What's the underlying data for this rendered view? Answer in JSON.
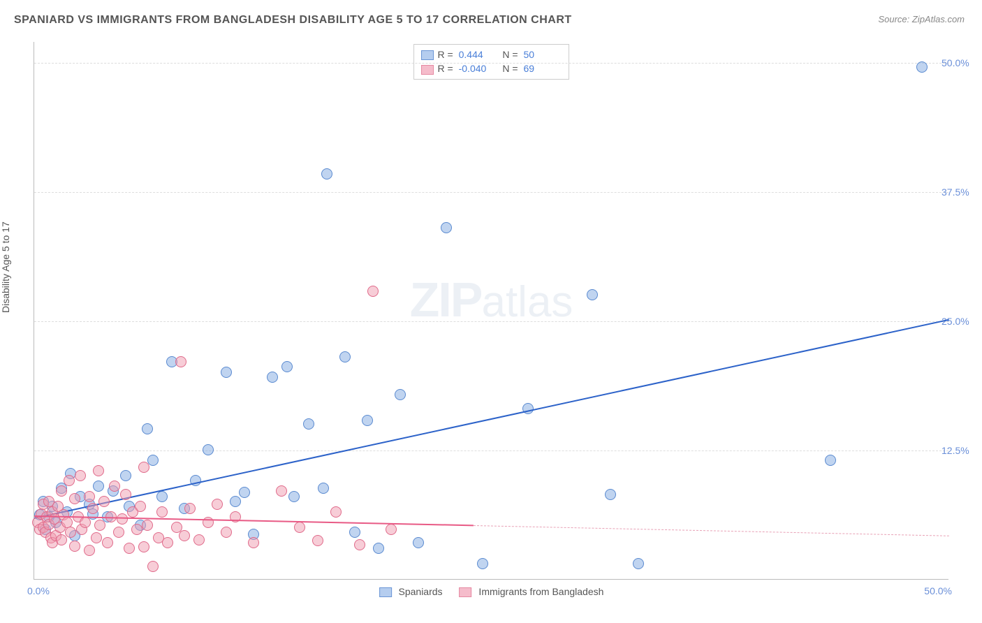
{
  "title": "SPANIARD VS IMMIGRANTS FROM BANGLADESH DISABILITY AGE 5 TO 17 CORRELATION CHART",
  "source": "Source: ZipAtlas.com",
  "ylabel": "Disability Age 5 to 17",
  "watermark_a": "ZIP",
  "watermark_b": "atlas",
  "chart": {
    "type": "scatter",
    "background_color": "#ffffff",
    "grid_color": "#dddddd",
    "xlim": [
      0,
      50
    ],
    "ylim": [
      0,
      52
    ],
    "y_ticks": [
      12.5,
      25.0,
      37.5,
      50.0
    ],
    "y_tick_labels": [
      "12.5%",
      "25.0%",
      "37.5%",
      "50.0%"
    ],
    "x_tick_left": "0.0%",
    "x_tick_right": "50.0%",
    "point_radius": 8,
    "point_border_width": 1,
    "series": [
      {
        "name": "Spaniards",
        "fill": "rgba(130,170,225,0.5)",
        "stroke": "#5a8ad0",
        "swatch_fill": "#b5cdef",
        "swatch_border": "#6a95d5",
        "R": "0.444",
        "N": "50",
        "trend": {
          "x1": 0,
          "y1": 6.0,
          "x2": 50,
          "y2": 25.2,
          "color": "#2c62c9",
          "width": 2
        },
        "points": [
          [
            0.3,
            6.2
          ],
          [
            0.5,
            7.5
          ],
          [
            0.6,
            4.8
          ],
          [
            0.8,
            6.0
          ],
          [
            1.0,
            7.0
          ],
          [
            1.2,
            5.5
          ],
          [
            1.5,
            8.8
          ],
          [
            1.8,
            6.5
          ],
          [
            2.0,
            10.2
          ],
          [
            2.2,
            4.2
          ],
          [
            2.5,
            8.0
          ],
          [
            3.0,
            7.2
          ],
          [
            3.2,
            6.3
          ],
          [
            3.5,
            9.0
          ],
          [
            4.0,
            6.0
          ],
          [
            4.3,
            8.5
          ],
          [
            5.0,
            10.0
          ],
          [
            5.2,
            7.0
          ],
          [
            5.8,
            5.2
          ],
          [
            6.2,
            14.5
          ],
          [
            6.5,
            11.5
          ],
          [
            7.0,
            8.0
          ],
          [
            7.5,
            21.0
          ],
          [
            8.2,
            6.8
          ],
          [
            8.8,
            9.5
          ],
          [
            9.5,
            12.5
          ],
          [
            10.5,
            20.0
          ],
          [
            11.0,
            7.5
          ],
          [
            11.5,
            8.4
          ],
          [
            12.0,
            4.3
          ],
          [
            13.0,
            19.5
          ],
          [
            13.8,
            20.5
          ],
          [
            14.2,
            8.0
          ],
          [
            15.0,
            15.0
          ],
          [
            15.8,
            8.8
          ],
          [
            16.0,
            39.2
          ],
          [
            17.0,
            21.5
          ],
          [
            17.5,
            4.5
          ],
          [
            18.2,
            15.3
          ],
          [
            18.8,
            3.0
          ],
          [
            20.0,
            17.8
          ],
          [
            21.0,
            3.5
          ],
          [
            22.5,
            34.0
          ],
          [
            24.5,
            1.5
          ],
          [
            27.0,
            16.5
          ],
          [
            30.5,
            27.5
          ],
          [
            31.5,
            8.2
          ],
          [
            33.0,
            1.5
          ],
          [
            43.5,
            11.5
          ],
          [
            48.5,
            49.5
          ]
        ]
      },
      {
        "name": "Immigrants from Bangladesh",
        "fill": "rgba(240,155,175,0.5)",
        "stroke": "#e06a8a",
        "swatch_fill": "#f5bccb",
        "swatch_border": "#e58aa2",
        "R": "-0.040",
        "N": "69",
        "trend_solid": {
          "x1": 0,
          "y1": 6.2,
          "x2": 24,
          "y2": 5.3,
          "color": "#e85a85",
          "width": 2
        },
        "trend_dashed": {
          "x1": 24,
          "y1": 5.3,
          "x2": 50,
          "y2": 4.3,
          "color": "#e8a0b5"
        },
        "points": [
          [
            0.2,
            5.5
          ],
          [
            0.3,
            4.8
          ],
          [
            0.4,
            6.3
          ],
          [
            0.5,
            5.0
          ],
          [
            0.5,
            7.2
          ],
          [
            0.6,
            4.5
          ],
          [
            0.7,
            6.0
          ],
          [
            0.8,
            5.3
          ],
          [
            0.8,
            7.5
          ],
          [
            0.9,
            4.0
          ],
          [
            1.0,
            6.5
          ],
          [
            1.0,
            3.5
          ],
          [
            1.1,
            5.8
          ],
          [
            1.2,
            4.2
          ],
          [
            1.3,
            7.0
          ],
          [
            1.4,
            5.0
          ],
          [
            1.5,
            8.5
          ],
          [
            1.5,
            3.8
          ],
          [
            1.6,
            6.2
          ],
          [
            1.8,
            5.5
          ],
          [
            1.9,
            9.5
          ],
          [
            2.0,
            4.5
          ],
          [
            2.2,
            7.8
          ],
          [
            2.2,
            3.2
          ],
          [
            2.4,
            6.0
          ],
          [
            2.5,
            10.0
          ],
          [
            2.6,
            4.8
          ],
          [
            2.8,
            5.5
          ],
          [
            3.0,
            8.0
          ],
          [
            3.0,
            2.8
          ],
          [
            3.2,
            6.8
          ],
          [
            3.4,
            4.0
          ],
          [
            3.5,
            10.5
          ],
          [
            3.6,
            5.2
          ],
          [
            3.8,
            7.5
          ],
          [
            4.0,
            3.5
          ],
          [
            4.2,
            6.0
          ],
          [
            4.4,
            9.0
          ],
          [
            4.6,
            4.5
          ],
          [
            4.8,
            5.8
          ],
          [
            5.0,
            8.2
          ],
          [
            5.2,
            3.0
          ],
          [
            5.4,
            6.5
          ],
          [
            5.6,
            4.8
          ],
          [
            5.8,
            7.0
          ],
          [
            6.0,
            3.1
          ],
          [
            6.0,
            10.8
          ],
          [
            6.2,
            5.2
          ],
          [
            6.5,
            1.2
          ],
          [
            6.8,
            4.0
          ],
          [
            7.0,
            6.5
          ],
          [
            7.3,
            3.5
          ],
          [
            7.8,
            5.0
          ],
          [
            8.0,
            21.0
          ],
          [
            8.2,
            4.2
          ],
          [
            8.5,
            6.8
          ],
          [
            9.0,
            3.8
          ],
          [
            9.5,
            5.5
          ],
          [
            10.0,
            7.2
          ],
          [
            10.5,
            4.5
          ],
          [
            11.0,
            6.0
          ],
          [
            12.0,
            3.5
          ],
          [
            13.5,
            8.5
          ],
          [
            14.5,
            5.0
          ],
          [
            15.5,
            3.7
          ],
          [
            16.5,
            6.5
          ],
          [
            17.8,
            3.3
          ],
          [
            18.5,
            27.8
          ],
          [
            19.5,
            4.8
          ]
        ]
      }
    ]
  },
  "bottom_legend": [
    "Spaniards",
    "Immigrants from Bangladesh"
  ]
}
